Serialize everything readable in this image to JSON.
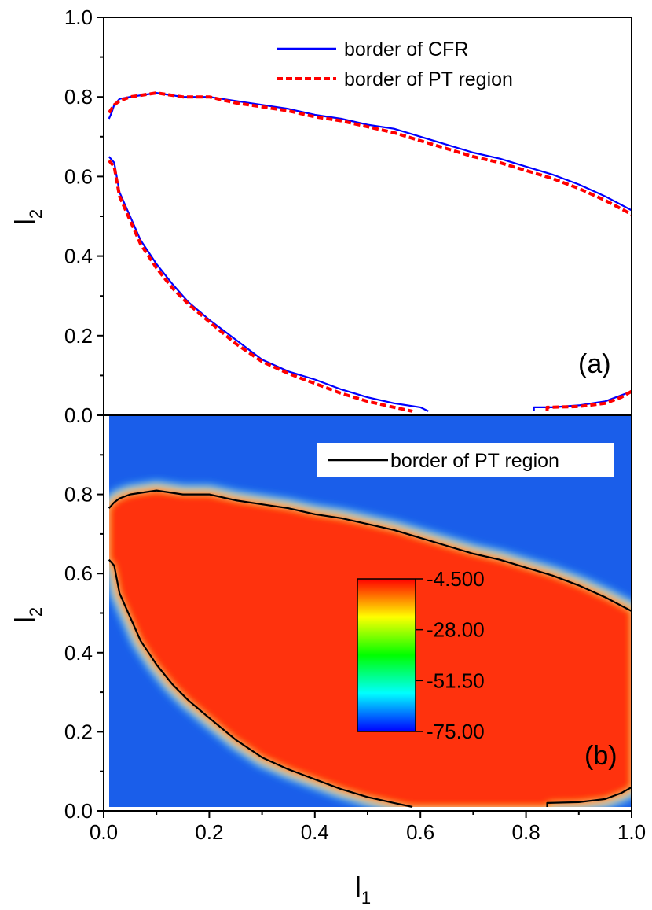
{
  "chart_data": [
    {
      "type": "line",
      "panel_label": "(a)",
      "xlim": [
        0.0,
        1.0
      ],
      "ylim": [
        0.0,
        1.0
      ],
      "ylabel": {
        "main": "l",
        "sub": "2"
      },
      "yticks": [
        "0.0",
        "0.2",
        "0.4",
        "0.6",
        "0.8",
        "1.0"
      ],
      "legend_position": "top-right",
      "series": [
        {
          "name": "border of CFR",
          "color": "#0000ff",
          "style": "solid",
          "segments": [
            [
              [
                0.01,
                0.745
              ],
              [
                0.015,
                0.76
              ],
              [
                0.02,
                0.78
              ],
              [
                0.03,
                0.795
              ],
              [
                0.05,
                0.8
              ],
              [
                0.1,
                0.81
              ],
              [
                0.15,
                0.8
              ],
              [
                0.2,
                0.8
              ],
              [
                0.25,
                0.79
              ],
              [
                0.3,
                0.78
              ],
              [
                0.35,
                0.77
              ],
              [
                0.4,
                0.755
              ],
              [
                0.45,
                0.745
              ],
              [
                0.5,
                0.73
              ],
              [
                0.55,
                0.72
              ],
              [
                0.6,
                0.7
              ],
              [
                0.65,
                0.68
              ],
              [
                0.7,
                0.66
              ],
              [
                0.75,
                0.645
              ],
              [
                0.8,
                0.625
              ],
              [
                0.85,
                0.605
              ],
              [
                0.9,
                0.58
              ],
              [
                0.95,
                0.55
              ],
              [
                1.0,
                0.515
              ]
            ],
            [
              [
                0.01,
                0.65
              ],
              [
                0.02,
                0.635
              ],
              [
                0.03,
                0.56
              ],
              [
                0.05,
                0.5
              ],
              [
                0.07,
                0.44
              ],
              [
                0.1,
                0.38
              ],
              [
                0.13,
                0.33
              ],
              [
                0.16,
                0.285
              ],
              [
                0.2,
                0.24
              ],
              [
                0.25,
                0.19
              ],
              [
                0.3,
                0.14
              ],
              [
                0.35,
                0.11
              ],
              [
                0.4,
                0.09
              ],
              [
                0.45,
                0.065
              ],
              [
                0.5,
                0.045
              ],
              [
                0.55,
                0.03
              ],
              [
                0.6,
                0.02
              ],
              [
                0.615,
                0.01
              ]
            ],
            [
              [
                0.815,
                0.01
              ],
              [
                0.815,
                0.02
              ],
              [
                0.85,
                0.02
              ],
              [
                0.9,
                0.025
              ],
              [
                0.95,
                0.035
              ],
              [
                0.98,
                0.05
              ],
              [
                1.0,
                0.06
              ]
            ]
          ]
        },
        {
          "name": "border of PT region",
          "color": "#ff0000",
          "style": "dashed",
          "segments": [
            [
              [
                0.01,
                0.76
              ],
              [
                0.02,
                0.78
              ],
              [
                0.03,
                0.79
              ],
              [
                0.05,
                0.8
              ],
              [
                0.1,
                0.81
              ],
              [
                0.15,
                0.8
              ],
              [
                0.2,
                0.8
              ],
              [
                0.25,
                0.785
              ],
              [
                0.3,
                0.775
              ],
              [
                0.35,
                0.765
              ],
              [
                0.4,
                0.75
              ],
              [
                0.45,
                0.74
              ],
              [
                0.5,
                0.725
              ],
              [
                0.55,
                0.71
              ],
              [
                0.6,
                0.69
              ],
              [
                0.65,
                0.67
              ],
              [
                0.7,
                0.65
              ],
              [
                0.75,
                0.635
              ],
              [
                0.8,
                0.615
              ],
              [
                0.85,
                0.595
              ],
              [
                0.9,
                0.57
              ],
              [
                0.95,
                0.54
              ],
              [
                1.0,
                0.505
              ]
            ],
            [
              [
                0.01,
                0.64
              ],
              [
                0.02,
                0.625
              ],
              [
                0.03,
                0.55
              ],
              [
                0.05,
                0.49
              ],
              [
                0.07,
                0.43
              ],
              [
                0.1,
                0.37
              ],
              [
                0.13,
                0.32
              ],
              [
                0.16,
                0.28
              ],
              [
                0.2,
                0.235
              ],
              [
                0.25,
                0.18
              ],
              [
                0.3,
                0.135
              ],
              [
                0.35,
                0.105
              ],
              [
                0.4,
                0.08
              ],
              [
                0.45,
                0.055
              ],
              [
                0.5,
                0.035
              ],
              [
                0.55,
                0.02
              ],
              [
                0.585,
                0.01
              ]
            ],
            [
              [
                0.84,
                0.01
              ],
              [
                0.84,
                0.02
              ],
              [
                0.9,
                0.022
              ],
              [
                0.95,
                0.03
              ],
              [
                0.98,
                0.045
              ],
              [
                1.0,
                0.06
              ]
            ]
          ]
        }
      ]
    },
    {
      "type": "heatmap",
      "panel_label": "(b)",
      "xlim": [
        0.0,
        1.0
      ],
      "ylim": [
        0.0,
        1.0
      ],
      "xlabel": {
        "main": "l",
        "sub": "1"
      },
      "ylabel": {
        "main": "l",
        "sub": "2"
      },
      "xticks": [
        "0.0",
        "0.2",
        "0.4",
        "0.6",
        "0.8",
        "1.0"
      ],
      "yticks": [
        "0.0",
        "0.2",
        "0.4",
        "0.6",
        "0.8"
      ],
      "legend_position": "top-right",
      "colorbar": {
        "labels": [
          "-4.500",
          "-28.00",
          "-51.50",
          "-75.00"
        ],
        "range": [
          -75.0,
          -4.5
        ],
        "colors": [
          "#ff0000",
          "#ffff00",
          "#00ff00",
          "#00ffff",
          "#0000ff"
        ]
      },
      "background_color": "#1a5eea",
      "region_color": "#ff3311",
      "series": [
        {
          "name": "border of PT region",
          "color": "#000000",
          "style": "solid",
          "segments": [
            [
              [
                0.01,
                0.765
              ],
              [
                0.02,
                0.78
              ],
              [
                0.03,
                0.79
              ],
              [
                0.05,
                0.8
              ],
              [
                0.1,
                0.81
              ],
              [
                0.15,
                0.8
              ],
              [
                0.2,
                0.8
              ],
              [
                0.25,
                0.785
              ],
              [
                0.3,
                0.775
              ],
              [
                0.35,
                0.765
              ],
              [
                0.4,
                0.75
              ],
              [
                0.45,
                0.74
              ],
              [
                0.5,
                0.725
              ],
              [
                0.55,
                0.71
              ],
              [
                0.6,
                0.69
              ],
              [
                0.65,
                0.67
              ],
              [
                0.7,
                0.65
              ],
              [
                0.75,
                0.635
              ],
              [
                0.8,
                0.615
              ],
              [
                0.85,
                0.595
              ],
              [
                0.9,
                0.57
              ],
              [
                0.95,
                0.54
              ],
              [
                1.0,
                0.505
              ]
            ],
            [
              [
                0.01,
                0.635
              ],
              [
                0.02,
                0.62
              ],
              [
                0.03,
                0.55
              ],
              [
                0.05,
                0.49
              ],
              [
                0.07,
                0.43
              ],
              [
                0.1,
                0.37
              ],
              [
                0.13,
                0.32
              ],
              [
                0.16,
                0.28
              ],
              [
                0.2,
                0.235
              ],
              [
                0.25,
                0.18
              ],
              [
                0.3,
                0.135
              ],
              [
                0.35,
                0.105
              ],
              [
                0.4,
                0.08
              ],
              [
                0.45,
                0.055
              ],
              [
                0.5,
                0.035
              ],
              [
                0.55,
                0.02
              ],
              [
                0.585,
                0.01
              ]
            ],
            [
              [
                0.84,
                0.01
              ],
              [
                0.84,
                0.02
              ],
              [
                0.9,
                0.022
              ],
              [
                0.95,
                0.03
              ],
              [
                0.98,
                0.045
              ],
              [
                1.0,
                0.06
              ]
            ]
          ]
        }
      ]
    }
  ]
}
